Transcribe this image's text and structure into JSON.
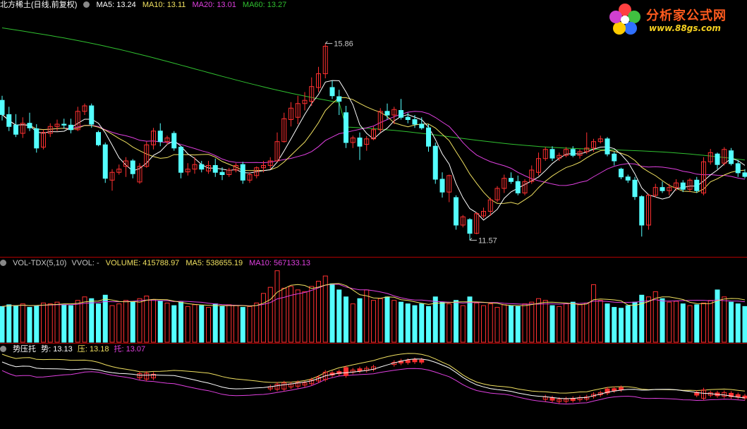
{
  "header": {
    "stock_name": "北方稀土(日线,前复权)",
    "ma5": "MA5: 13.24",
    "ma10": "MA10: 13.11",
    "ma20": "MA20: 13.01",
    "ma60": "MA60: 13.27"
  },
  "volume_header": {
    "indicator": "VOL-TDX(5,10)",
    "vvol": "VVOL: -",
    "volume": "VOLUME: 415788.97",
    "ma5": "MA5: 538655.19",
    "ma10": "MA10: 567133.13"
  },
  "bottom_header": {
    "indicator": "势压托",
    "shi": "势: 13.13",
    "ya": "压: 13.18",
    "tuo": "托: 13.07"
  },
  "logo": {
    "title": "分析家公式网",
    "url": "www.88gs.com"
  },
  "colors": {
    "background": "#000000",
    "up": "#ff3030",
    "down": "#54ffff",
    "ma5": "#ffffff",
    "ma10": "#f0e060",
    "ma20": "#e040e0",
    "ma60": "#30c030",
    "divider": "#b00000"
  },
  "chart_data": [
    {
      "type": "candlestick",
      "title": "北方稀土(日线,前复权)",
      "annotations": [
        {
          "label": "15.86",
          "index": 47,
          "value": 15.86
        },
        {
          "label": "11.57",
          "index": 68,
          "value": 11.57
        }
      ],
      "ylim": [
        11.3,
        16.5
      ],
      "series": [
        {
          "name": "MA5",
          "value": 13.24
        },
        {
          "name": "MA10",
          "value": 13.11
        },
        {
          "name": "MA20",
          "value": 13.01
        },
        {
          "name": "MA60",
          "value": 13.27
        }
      ],
      "ohlc": [
        [
          14.62,
          14.72,
          14.18,
          14.31
        ],
        [
          14.31,
          14.48,
          13.95,
          14.05
        ],
        [
          14.08,
          14.32,
          13.82,
          13.88
        ],
        [
          13.9,
          14.25,
          13.8,
          14.12
        ],
        [
          14.12,
          14.35,
          13.95,
          14.02
        ],
        [
          14.0,
          14.1,
          13.48,
          13.58
        ],
        [
          13.6,
          13.98,
          13.55,
          13.92
        ],
        [
          13.9,
          14.12,
          13.82,
          14.05
        ],
        [
          14.05,
          14.2,
          13.95,
          14.1
        ],
        [
          14.1,
          14.22,
          14.0,
          14.08
        ],
        [
          14.08,
          14.22,
          13.9,
          13.98
        ],
        [
          13.98,
          14.48,
          13.95,
          14.38
        ],
        [
          14.38,
          14.55,
          14.3,
          14.5
        ],
        [
          14.5,
          14.55,
          14.02,
          14.1
        ],
        [
          13.92,
          13.96,
          13.62,
          13.65
        ],
        [
          13.65,
          13.7,
          12.82,
          12.92
        ],
        [
          12.88,
          13.12,
          12.65,
          13.05
        ],
        [
          13.05,
          13.22,
          13.0,
          13.12
        ],
        [
          13.18,
          13.38,
          12.95,
          13.3
        ],
        [
          13.3,
          13.34,
          12.92,
          13.02
        ],
        [
          12.84,
          13.25,
          12.8,
          13.18
        ],
        [
          13.18,
          13.72,
          13.15,
          13.65
        ],
        [
          13.65,
          14.02,
          13.55,
          13.95
        ],
        [
          13.95,
          14.12,
          13.62,
          13.72
        ],
        [
          13.72,
          13.85,
          13.65,
          13.8
        ],
        [
          13.9,
          13.95,
          13.52,
          13.58
        ],
        [
          13.6,
          13.62,
          12.92,
          13.05
        ],
        [
          13.06,
          13.25,
          12.98,
          13.12
        ],
        [
          13.12,
          13.38,
          13.02,
          13.22
        ],
        [
          13.22,
          13.3,
          13.05,
          13.12
        ],
        [
          13.08,
          13.3,
          13.02,
          13.2
        ],
        [
          13.2,
          13.35,
          12.95,
          13.05
        ],
        [
          13.05,
          13.16,
          12.88,
          13.0
        ],
        [
          13.0,
          13.15,
          12.95,
          13.1
        ],
        [
          13.1,
          13.25,
          13.05,
          13.2
        ],
        [
          13.22,
          13.28,
          12.8,
          12.88
        ],
        [
          12.88,
          13.05,
          12.82,
          13.0
        ],
        [
          12.98,
          13.18,
          12.92,
          13.15
        ],
        [
          13.15,
          13.3,
          13.05,
          13.2
        ],
        [
          13.2,
          13.38,
          13.12,
          13.3
        ],
        [
          13.3,
          13.92,
          13.28,
          13.72
        ],
        [
          13.72,
          14.35,
          13.7,
          14.22
        ],
        [
          14.2,
          14.58,
          14.05,
          14.45
        ],
        [
          14.25,
          14.72,
          14.1,
          14.55
        ],
        [
          14.55,
          14.8,
          14.4,
          14.62
        ],
        [
          14.6,
          15.12,
          14.5,
          14.92
        ],
        [
          14.9,
          15.35,
          14.8,
          15.2
        ],
        [
          15.2,
          15.86,
          15.1,
          15.8
        ],
        [
          14.9,
          15.05,
          14.65,
          14.72
        ],
        [
          14.7,
          14.85,
          14.3,
          14.6
        ],
        [
          14.35,
          14.5,
          13.58,
          13.7
        ],
        [
          13.7,
          13.85,
          13.58,
          13.8
        ],
        [
          13.8,
          13.92,
          13.32,
          13.62
        ],
        [
          13.66,
          13.84,
          13.52,
          13.78
        ],
        [
          13.78,
          14.05,
          13.75,
          13.98
        ],
        [
          13.98,
          14.45,
          13.92,
          14.38
        ],
        [
          14.38,
          14.55,
          14.2,
          14.3
        ],
        [
          14.3,
          14.48,
          14.1,
          14.42
        ],
        [
          14.4,
          14.65,
          14.2,
          14.25
        ],
        [
          14.25,
          14.35,
          14.12,
          14.2
        ],
        [
          14.2,
          14.3,
          14.02,
          14.1
        ],
        [
          14.1,
          14.25,
          13.98,
          14.02
        ],
        [
          14.02,
          14.1,
          13.5,
          13.62
        ],
        [
          13.62,
          13.7,
          12.8,
          12.9
        ],
        [
          12.9,
          13.05,
          12.5,
          12.62
        ],
        [
          12.62,
          13.0,
          12.4,
          12.98
        ],
        [
          12.5,
          12.55,
          11.8,
          11.9
        ],
        [
          11.9,
          12.12,
          11.85,
          12.08
        ],
        [
          12.02,
          12.05,
          11.57,
          11.72
        ],
        [
          11.72,
          12.18,
          11.7,
          12.15
        ],
        [
          12.1,
          12.28,
          12.05,
          12.2
        ],
        [
          12.2,
          12.5,
          12.1,
          12.45
        ],
        [
          12.45,
          12.75,
          12.4,
          12.7
        ],
        [
          12.7,
          13.0,
          12.6,
          12.92
        ],
        [
          12.92,
          13.05,
          12.8,
          12.85
        ],
        [
          12.85,
          12.98,
          12.55,
          12.6
        ],
        [
          12.6,
          12.9,
          12.55,
          12.85
        ],
        [
          12.85,
          13.2,
          12.8,
          13.1
        ],
        [
          13.05,
          13.48,
          12.98,
          13.35
        ],
        [
          13.35,
          13.6,
          13.3,
          13.55
        ],
        [
          13.55,
          13.62,
          13.3,
          13.36
        ],
        [
          13.36,
          13.48,
          13.3,
          13.42
        ],
        [
          13.42,
          13.6,
          13.38,
          13.55
        ],
        [
          13.55,
          13.62,
          13.38,
          13.42
        ],
        [
          13.42,
          13.55,
          13.35,
          13.5
        ],
        [
          13.5,
          13.92,
          13.45,
          13.58
        ],
        [
          13.58,
          13.78,
          13.5,
          13.72
        ],
        [
          13.72,
          13.85,
          13.68,
          13.78
        ],
        [
          13.78,
          13.82,
          13.4,
          13.45
        ],
        [
          13.45,
          13.5,
          13.2,
          13.3
        ],
        [
          13.12,
          13.15,
          12.9,
          12.95
        ],
        [
          12.95,
          13.0,
          12.82,
          12.88
        ],
        [
          12.88,
          12.95,
          12.45,
          12.52
        ],
        [
          12.52,
          12.55,
          11.65,
          11.9
        ],
        [
          11.9,
          12.58,
          11.8,
          12.55
        ],
        [
          12.55,
          12.8,
          12.5,
          12.72
        ],
        [
          12.72,
          12.85,
          12.6,
          12.65
        ],
        [
          12.65,
          12.8,
          12.55,
          12.72
        ],
        [
          12.72,
          12.9,
          12.65,
          12.82
        ],
        [
          12.82,
          12.88,
          12.62,
          12.68
        ],
        [
          12.68,
          12.92,
          12.62,
          12.88
        ],
        [
          12.88,
          12.95,
          12.6,
          12.65
        ],
        [
          12.6,
          13.38,
          12.55,
          13.28
        ],
        [
          13.28,
          13.56,
          13.22,
          13.48
        ],
        [
          13.45,
          13.48,
          13.12,
          13.22
        ],
        [
          13.25,
          13.6,
          13.2,
          13.55
        ],
        [
          13.52,
          13.58,
          13.2,
          13.24
        ],
        [
          13.24,
          13.32,
          12.95,
          13.04
        ],
        [
          13.04,
          13.12,
          12.92,
          12.96
        ]
      ]
    },
    {
      "type": "bar",
      "title": "VOL-TDX(5,10)",
      "volume": [
        41,
        43,
        42,
        44,
        40,
        42,
        45,
        44,
        46,
        43,
        42,
        48,
        52,
        50,
        44,
        54,
        42,
        44,
        48,
        46,
        50,
        53,
        49,
        47,
        45,
        42,
        46,
        41,
        43,
        42,
        40,
        44,
        41,
        43,
        42,
        40,
        41,
        45,
        56,
        63,
        82,
        62,
        64,
        60,
        58,
        64,
        70,
        76,
        67,
        60,
        52,
        44,
        50,
        60,
        48,
        50,
        52,
        48,
        46,
        44,
        42,
        44,
        41,
        52,
        46,
        44,
        48,
        42,
        52,
        45,
        42,
        44,
        40,
        43,
        42,
        41,
        44,
        46,
        50,
        48,
        42,
        41,
        44,
        46,
        43,
        45,
        66,
        48,
        44,
        40,
        39,
        42,
        46,
        54,
        52,
        58,
        50,
        46,
        47,
        44,
        42,
        43,
        45,
        48,
        60,
        52,
        46,
        44,
        41
      ],
      "ma5_value": 538655.19,
      "ma10_value": 567133.13
    },
    {
      "type": "line",
      "title": "势压托",
      "series": [
        {
          "name": "势",
          "value": 13.13
        },
        {
          "name": "压",
          "value": 13.18
        },
        {
          "name": "托",
          "value": 13.07
        }
      ]
    }
  ]
}
